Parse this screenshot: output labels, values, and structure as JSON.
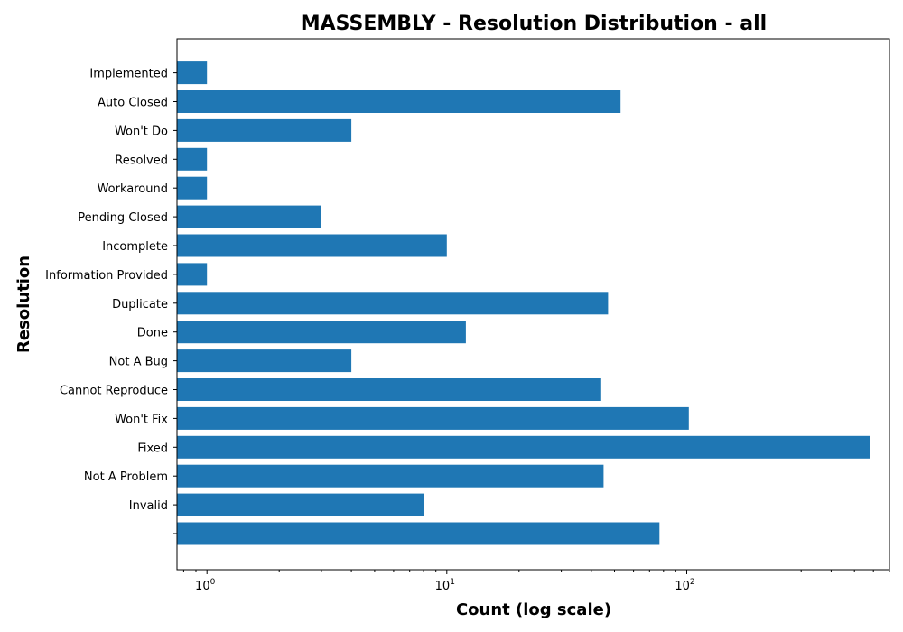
{
  "chart_data": {
    "type": "bar",
    "orientation": "horizontal",
    "title": "MASSEMBLY - Resolution Distribution - all",
    "xlabel": "Count (log scale)",
    "ylabel": "Resolution",
    "x_scale": "log",
    "xlim": [
      0.75,
      700
    ],
    "x_ticks": [
      {
        "value": 1,
        "base": "10",
        "exp": "0"
      },
      {
        "value": 10,
        "base": "10",
        "exp": "1"
      },
      {
        "value": 100,
        "base": "10",
        "exp": "2"
      }
    ],
    "grid": false,
    "bar_color": "#1f77b4",
    "categories": [
      "",
      "Invalid",
      "Not A Problem",
      "Fixed",
      "Won't Fix",
      "Cannot Reproduce",
      "Not A Bug",
      "Done",
      "Duplicate",
      "Information Provided",
      "Incomplete",
      "Pending Closed",
      "Workaround",
      "Resolved",
      "Won't Do",
      "Auto Closed",
      "Implemented"
    ],
    "values": [
      77,
      8,
      45,
      580,
      102,
      44,
      4,
      12,
      47,
      1,
      10,
      3,
      1,
      1,
      4,
      53,
      1
    ]
  }
}
